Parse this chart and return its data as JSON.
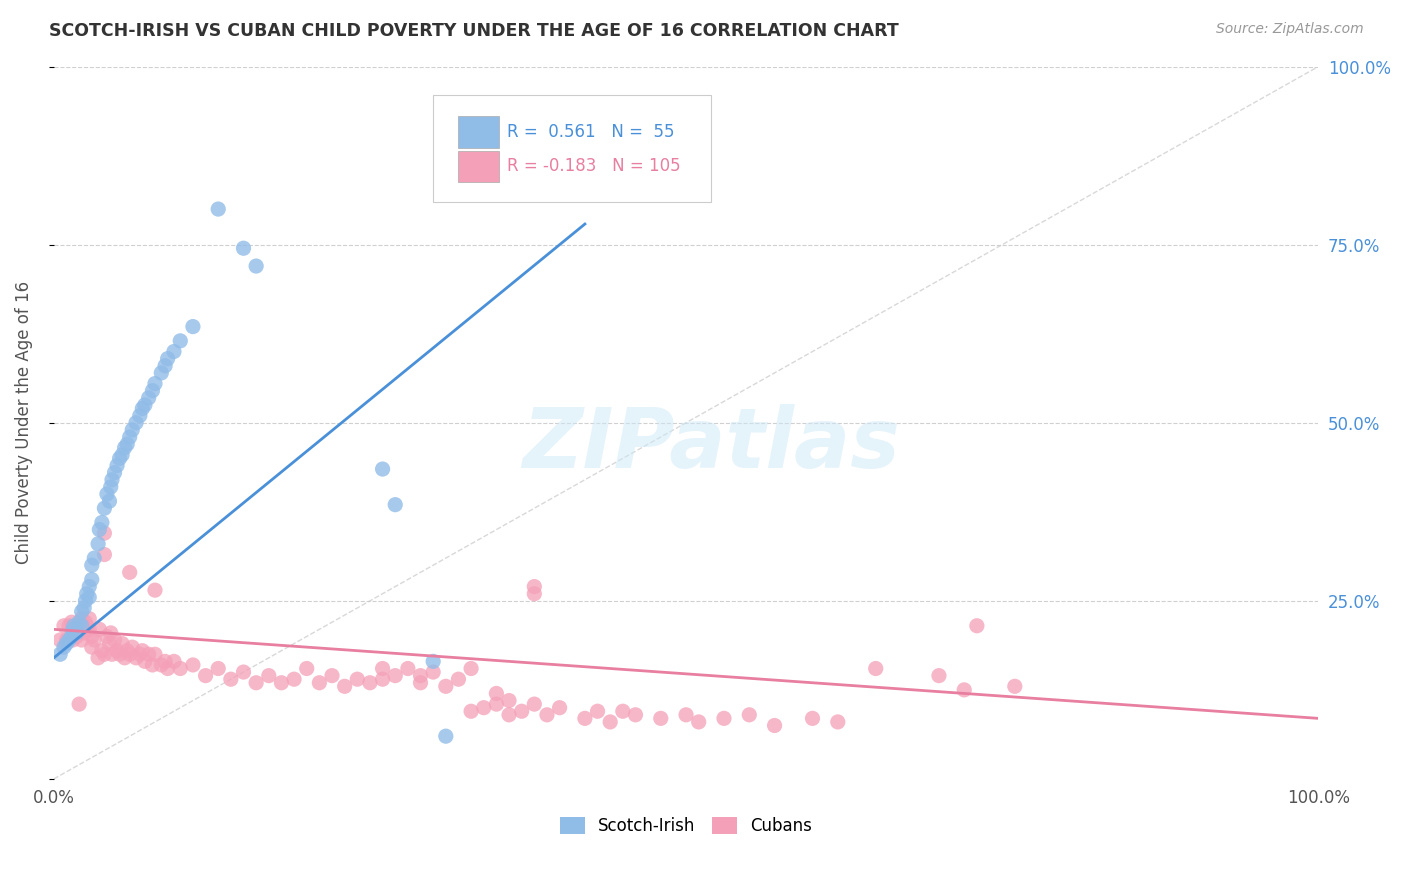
{
  "title": "SCOTCH-IRISH VS CUBAN CHILD POVERTY UNDER THE AGE OF 16 CORRELATION CHART",
  "source": "Source: ZipAtlas.com",
  "ylabel": "Child Poverty Under the Age of 16",
  "xlim": [
    0,
    1
  ],
  "ylim": [
    0,
    1
  ],
  "background_color": "#ffffff",
  "grid_color": "#d0d0d0",
  "scotch_irish_color": "#90bce8",
  "cuban_color": "#f4a0b8",
  "scotch_irish_line_color": "#4a90d9",
  "cuban_line_color": "#e87fa0",
  "diagonal_color": "#c8c8c8",
  "scotch_irish_points": [
    [
      0.005,
      0.175
    ],
    [
      0.008,
      0.185
    ],
    [
      0.01,
      0.19
    ],
    [
      0.012,
      0.195
    ],
    [
      0.014,
      0.2
    ],
    [
      0.015,
      0.21
    ],
    [
      0.016,
      0.215
    ],
    [
      0.018,
      0.205
    ],
    [
      0.02,
      0.22
    ],
    [
      0.022,
      0.215
    ],
    [
      0.022,
      0.235
    ],
    [
      0.024,
      0.24
    ],
    [
      0.025,
      0.25
    ],
    [
      0.026,
      0.26
    ],
    [
      0.028,
      0.255
    ],
    [
      0.028,
      0.27
    ],
    [
      0.03,
      0.28
    ],
    [
      0.03,
      0.3
    ],
    [
      0.032,
      0.31
    ],
    [
      0.035,
      0.33
    ],
    [
      0.036,
      0.35
    ],
    [
      0.038,
      0.36
    ],
    [
      0.04,
      0.38
    ],
    [
      0.042,
      0.4
    ],
    [
      0.044,
      0.39
    ],
    [
      0.045,
      0.41
    ],
    [
      0.046,
      0.42
    ],
    [
      0.048,
      0.43
    ],
    [
      0.05,
      0.44
    ],
    [
      0.052,
      0.45
    ],
    [
      0.054,
      0.455
    ],
    [
      0.056,
      0.465
    ],
    [
      0.058,
      0.47
    ],
    [
      0.06,
      0.48
    ],
    [
      0.062,
      0.49
    ],
    [
      0.065,
      0.5
    ],
    [
      0.068,
      0.51
    ],
    [
      0.07,
      0.52
    ],
    [
      0.072,
      0.525
    ],
    [
      0.075,
      0.535
    ],
    [
      0.078,
      0.545
    ],
    [
      0.08,
      0.555
    ],
    [
      0.085,
      0.57
    ],
    [
      0.088,
      0.58
    ],
    [
      0.09,
      0.59
    ],
    [
      0.095,
      0.6
    ],
    [
      0.1,
      0.615
    ],
    [
      0.11,
      0.635
    ],
    [
      0.13,
      0.8
    ],
    [
      0.15,
      0.745
    ],
    [
      0.16,
      0.72
    ],
    [
      0.26,
      0.435
    ],
    [
      0.27,
      0.385
    ],
    [
      0.3,
      0.165
    ],
    [
      0.31,
      0.06
    ]
  ],
  "cuban_points": [
    [
      0.005,
      0.195
    ],
    [
      0.008,
      0.215
    ],
    [
      0.01,
      0.195
    ],
    [
      0.012,
      0.215
    ],
    [
      0.014,
      0.22
    ],
    [
      0.015,
      0.195
    ],
    [
      0.016,
      0.21
    ],
    [
      0.018,
      0.2
    ],
    [
      0.02,
      0.215
    ],
    [
      0.022,
      0.195
    ],
    [
      0.022,
      0.225
    ],
    [
      0.024,
      0.205
    ],
    [
      0.025,
      0.22
    ],
    [
      0.026,
      0.215
    ],
    [
      0.028,
      0.225
    ],
    [
      0.028,
      0.21
    ],
    [
      0.03,
      0.2
    ],
    [
      0.03,
      0.185
    ],
    [
      0.032,
      0.195
    ],
    [
      0.035,
      0.17
    ],
    [
      0.036,
      0.21
    ],
    [
      0.038,
      0.18
    ],
    [
      0.04,
      0.175
    ],
    [
      0.042,
      0.2
    ],
    [
      0.044,
      0.19
    ],
    [
      0.045,
      0.205
    ],
    [
      0.046,
      0.175
    ],
    [
      0.048,
      0.195
    ],
    [
      0.05,
      0.18
    ],
    [
      0.052,
      0.175
    ],
    [
      0.054,
      0.19
    ],
    [
      0.056,
      0.17
    ],
    [
      0.058,
      0.18
    ],
    [
      0.06,
      0.175
    ],
    [
      0.062,
      0.185
    ],
    [
      0.065,
      0.17
    ],
    [
      0.068,
      0.175
    ],
    [
      0.07,
      0.18
    ],
    [
      0.072,
      0.165
    ],
    [
      0.075,
      0.175
    ],
    [
      0.078,
      0.16
    ],
    [
      0.08,
      0.175
    ],
    [
      0.085,
      0.16
    ],
    [
      0.088,
      0.165
    ],
    [
      0.09,
      0.155
    ],
    [
      0.095,
      0.165
    ],
    [
      0.1,
      0.155
    ],
    [
      0.11,
      0.16
    ],
    [
      0.12,
      0.145
    ],
    [
      0.13,
      0.155
    ],
    [
      0.14,
      0.14
    ],
    [
      0.15,
      0.15
    ],
    [
      0.16,
      0.135
    ],
    [
      0.17,
      0.145
    ],
    [
      0.18,
      0.135
    ],
    [
      0.19,
      0.14
    ],
    [
      0.2,
      0.155
    ],
    [
      0.21,
      0.135
    ],
    [
      0.22,
      0.145
    ],
    [
      0.23,
      0.13
    ],
    [
      0.24,
      0.14
    ],
    [
      0.25,
      0.135
    ],
    [
      0.26,
      0.155
    ],
    [
      0.26,
      0.14
    ],
    [
      0.27,
      0.145
    ],
    [
      0.28,
      0.155
    ],
    [
      0.29,
      0.135
    ],
    [
      0.29,
      0.145
    ],
    [
      0.3,
      0.15
    ],
    [
      0.31,
      0.13
    ],
    [
      0.32,
      0.14
    ],
    [
      0.33,
      0.095
    ],
    [
      0.33,
      0.155
    ],
    [
      0.34,
      0.1
    ],
    [
      0.35,
      0.105
    ],
    [
      0.35,
      0.12
    ],
    [
      0.36,
      0.09
    ],
    [
      0.36,
      0.11
    ],
    [
      0.37,
      0.095
    ],
    [
      0.38,
      0.105
    ],
    [
      0.39,
      0.09
    ],
    [
      0.4,
      0.1
    ],
    [
      0.42,
      0.085
    ],
    [
      0.43,
      0.095
    ],
    [
      0.44,
      0.08
    ],
    [
      0.45,
      0.095
    ],
    [
      0.46,
      0.09
    ],
    [
      0.48,
      0.085
    ],
    [
      0.5,
      0.09
    ],
    [
      0.51,
      0.08
    ],
    [
      0.53,
      0.085
    ],
    [
      0.55,
      0.09
    ],
    [
      0.57,
      0.075
    ],
    [
      0.6,
      0.085
    ],
    [
      0.62,
      0.08
    ],
    [
      0.65,
      0.155
    ],
    [
      0.7,
      0.145
    ],
    [
      0.72,
      0.125
    ],
    [
      0.73,
      0.215
    ],
    [
      0.76,
      0.13
    ],
    [
      0.02,
      0.105
    ],
    [
      0.04,
      0.315
    ],
    [
      0.04,
      0.345
    ],
    [
      0.06,
      0.29
    ],
    [
      0.08,
      0.265
    ],
    [
      0.38,
      0.26
    ],
    [
      0.38,
      0.27
    ]
  ]
}
